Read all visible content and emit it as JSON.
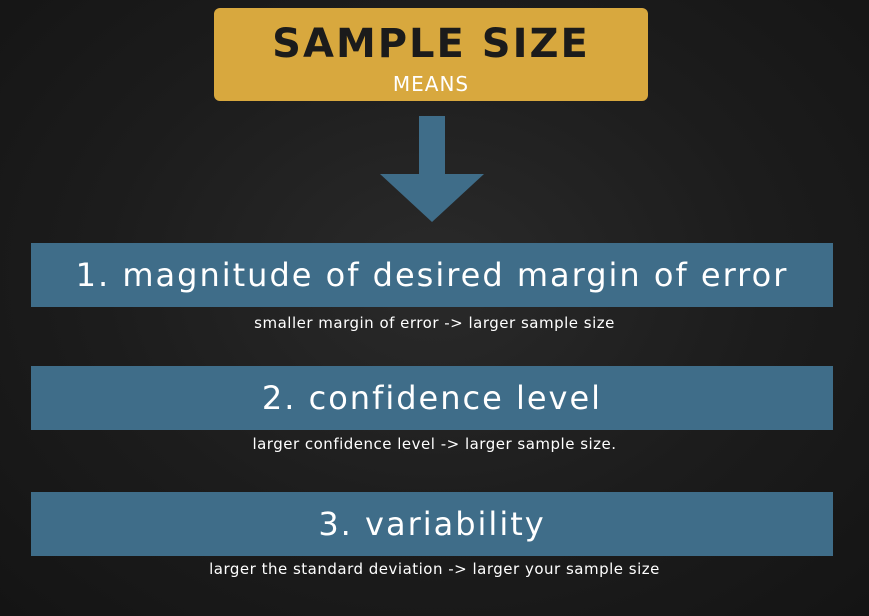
{
  "header": {
    "title": "SAMPLE SIZE",
    "subtitle": "MEANS"
  },
  "arrow": {
    "icon": "arrow-down-icon"
  },
  "factors": [
    {
      "label": "1. magnitude of desired margin of error",
      "note": "smaller margin of error -> larger sample size"
    },
    {
      "label": "2. confidence level",
      "note": "larger confidence level -> larger sample size."
    },
    {
      "label": "3. variability",
      "note": "larger the standard deviation -> larger your sample size"
    }
  ],
  "colors": {
    "background": "#1c1c1c",
    "title_box": "#d8a83e",
    "band": "#3f6d89",
    "arrow": "#3f6d89",
    "text_dark": "#1b1b1b",
    "text_light": "#ffffff"
  }
}
